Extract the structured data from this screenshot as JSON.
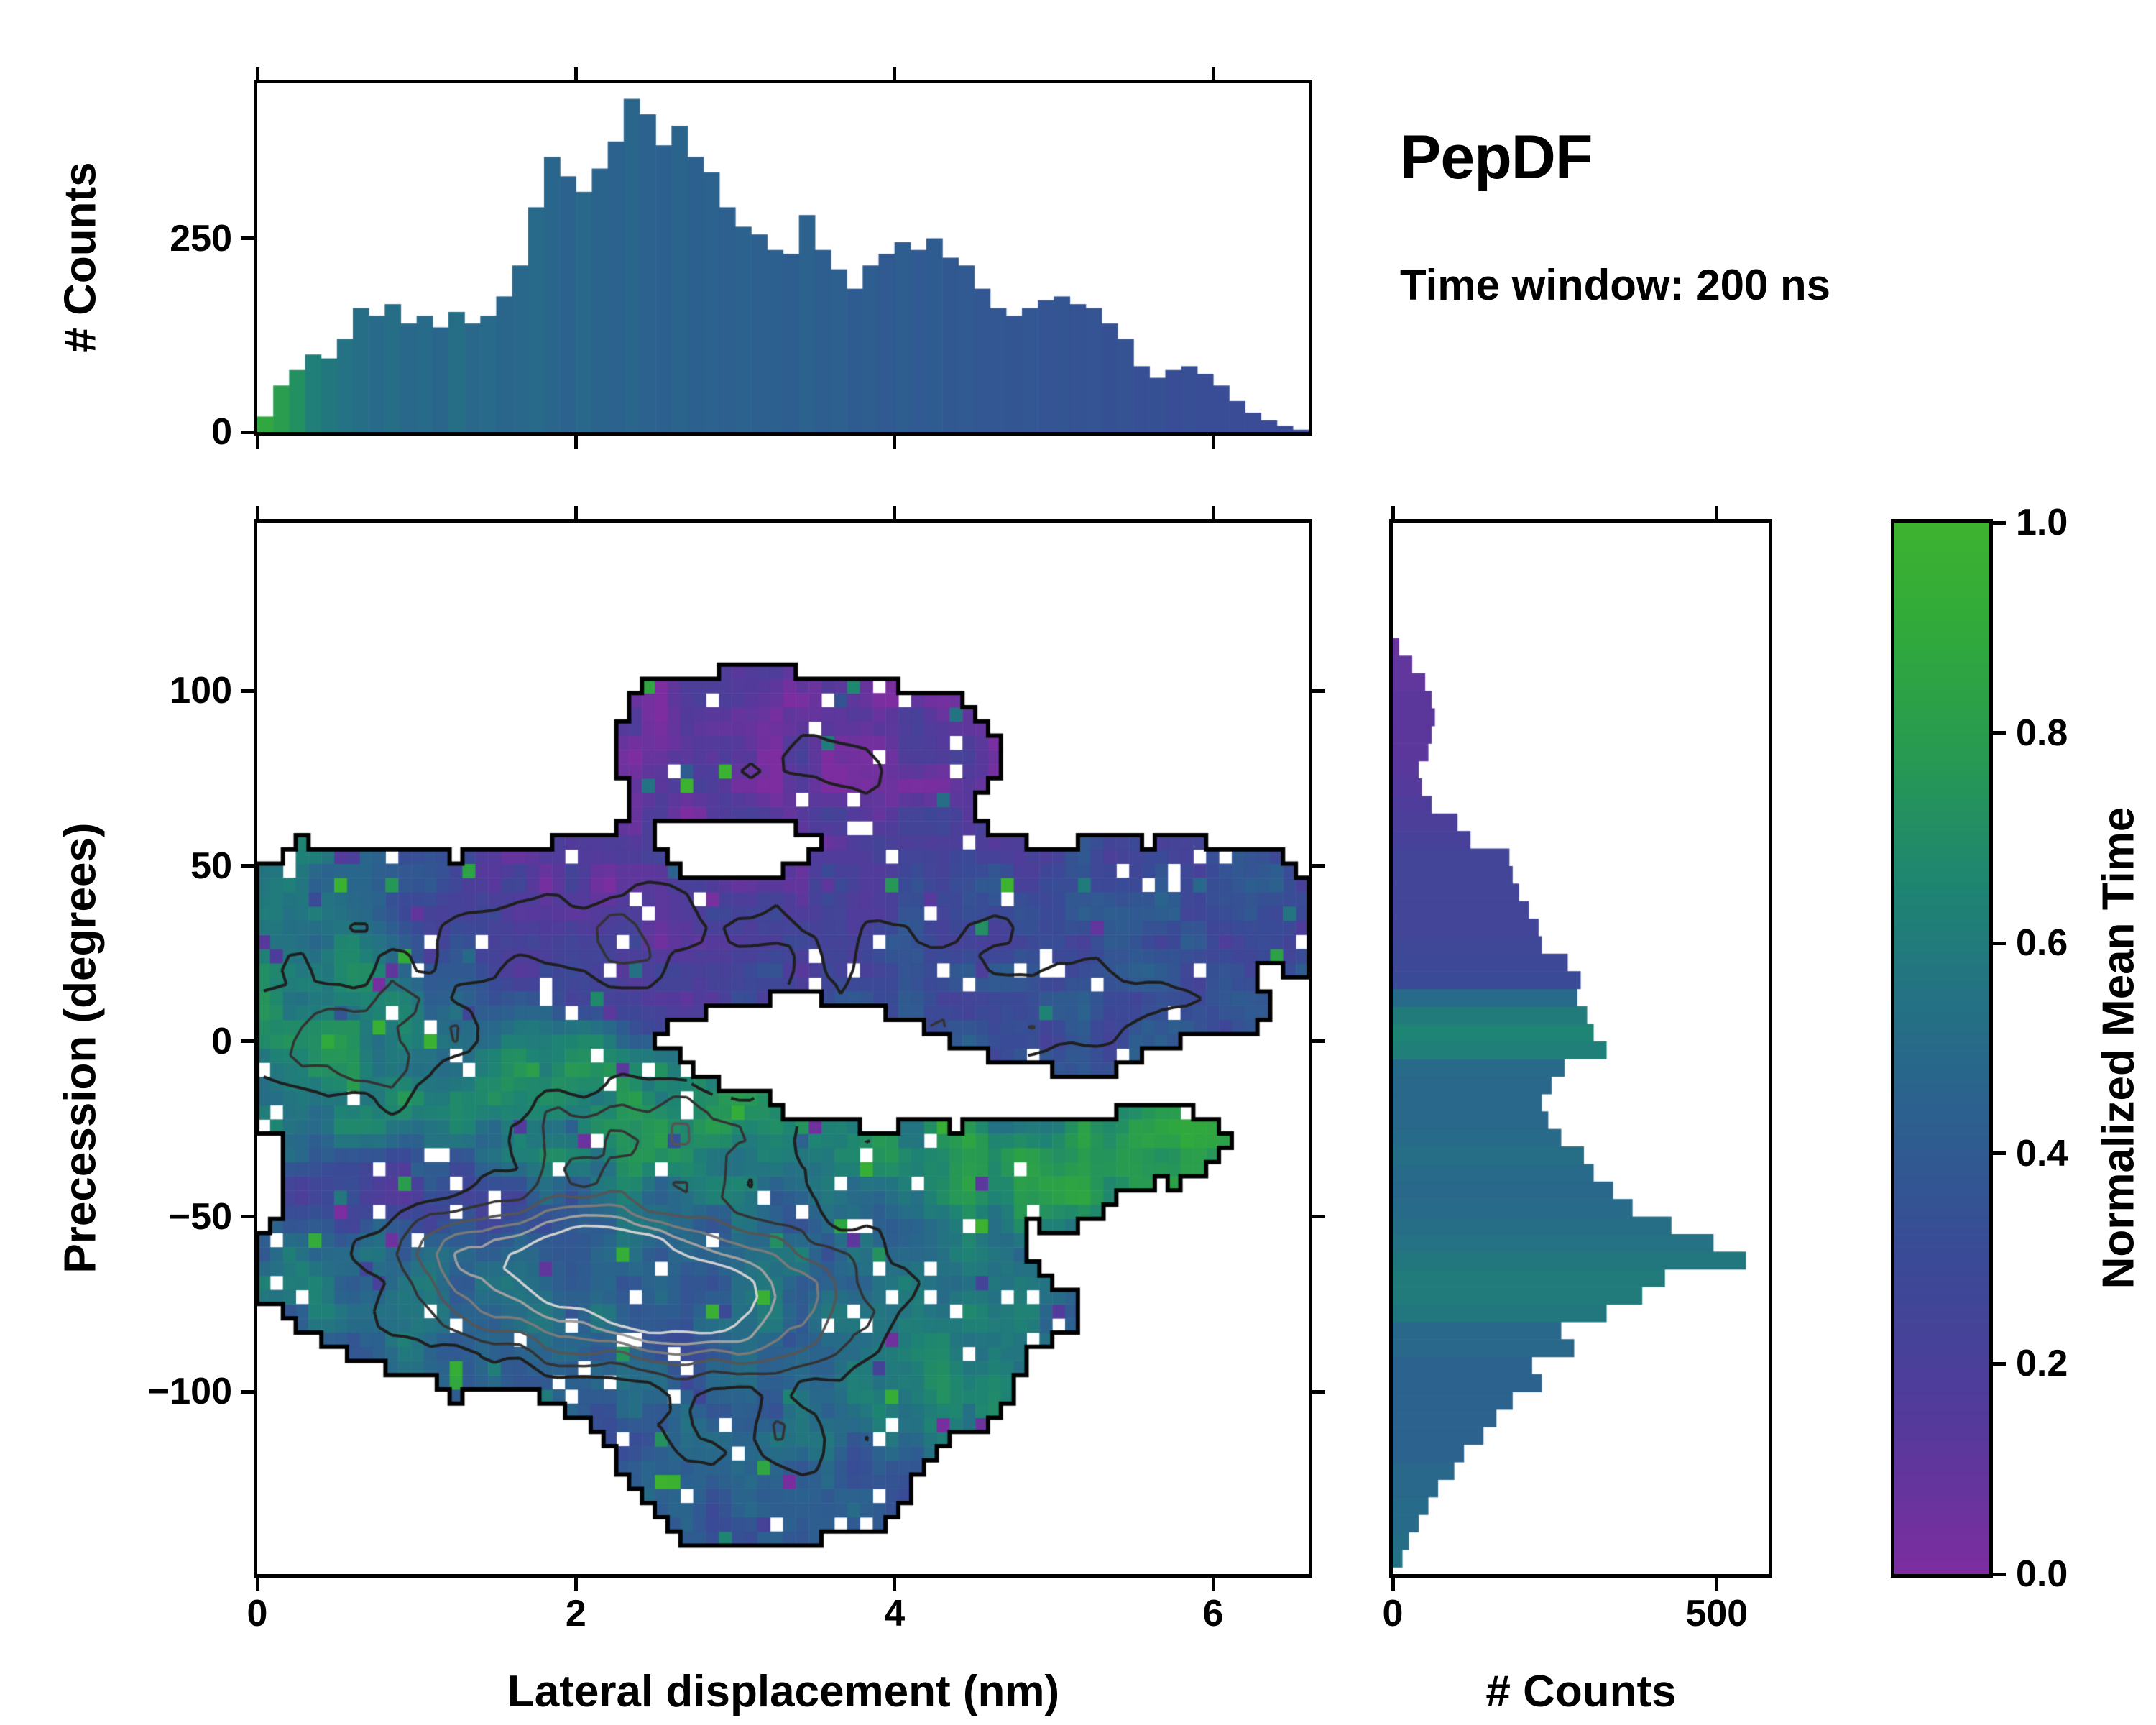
{
  "title": "PepDF",
  "subtitle": "Time window: 200 ns",
  "colorbar": {
    "label": "Normalized Mean Time",
    "tick_labels": [
      "0.0",
      "0.2",
      "0.4",
      "0.6",
      "0.8",
      "1.0"
    ],
    "tick_values": [
      0,
      0.2,
      0.4,
      0.6,
      0.8,
      1.0
    ],
    "stops": [
      [
        0,
        "#7d2da0"
      ],
      [
        0.15,
        "#533a9b"
      ],
      [
        0.3,
        "#3a4a96"
      ],
      [
        0.45,
        "#2b628e"
      ],
      [
        0.55,
        "#247283"
      ],
      [
        0.65,
        "#1e8473"
      ],
      [
        0.78,
        "#289a52"
      ],
      [
        0.9,
        "#31aa3b"
      ],
      [
        1,
        "#3db32f"
      ]
    ]
  },
  "axes": {
    "main": {
      "xlabel": "Lateral displacement (nm)",
      "ylabel": "Precession (degrees)",
      "xlim": [
        0,
        6.6
      ],
      "ylim": [
        -152,
        148
      ],
      "xticks": [
        0,
        2,
        4,
        6
      ],
      "xtick_labels": [
        "0",
        "2",
        "4",
        "6"
      ],
      "yticks": [
        -100,
        -50,
        0,
        50,
        100
      ],
      "ytick_labels": [
        "−100",
        "−50",
        "0",
        "50",
        "100"
      ]
    },
    "top": {
      "ylabel": "# Counts",
      "ylim": [
        0,
        450
      ],
      "yticks": [
        0,
        250
      ],
      "ytick_labels": [
        "0",
        "250"
      ]
    },
    "right": {
      "xlabel": "# Counts",
      "xlim": [
        0,
        580
      ],
      "xticks": [
        0,
        500
      ],
      "xtick_labels": [
        "0",
        "500"
      ]
    }
  },
  "chart_data": [
    {
      "type": "bar",
      "name": "lateral-displacement-histogram",
      "xlabel": "Lateral displacement (nm)",
      "ylabel": "# Counts",
      "x_start": 0,
      "bin_width": 0.1,
      "xlim": [
        0,
        6.6
      ],
      "ylim": [
        0,
        450
      ],
      "values": [
        20,
        60,
        80,
        100,
        95,
        120,
        160,
        150,
        165,
        140,
        150,
        135,
        155,
        140,
        150,
        175,
        215,
        290,
        355,
        330,
        310,
        340,
        375,
        430,
        410,
        370,
        395,
        355,
        335,
        290,
        265,
        255,
        235,
        230,
        280,
        235,
        210,
        185,
        215,
        230,
        245,
        235,
        250,
        225,
        215,
        185,
        160,
        150,
        160,
        170,
        175,
        165,
        160,
        140,
        120,
        85,
        70,
        80,
        85,
        75,
        60,
        40,
        25,
        15,
        8,
        3
      ],
      "color_values": [
        0.88,
        0.8,
        0.72,
        0.62,
        0.58,
        0.55,
        0.52,
        0.5,
        0.52,
        0.48,
        0.5,
        0.47,
        0.52,
        0.48,
        0.5,
        0.47,
        0.48,
        0.5,
        0.47,
        0.45,
        0.48,
        0.46,
        0.45,
        0.47,
        0.45,
        0.44,
        0.46,
        0.44,
        0.45,
        0.43,
        0.45,
        0.43,
        0.44,
        0.42,
        0.45,
        0.42,
        0.43,
        0.41,
        0.42,
        0.4,
        0.42,
        0.4,
        0.41,
        0.39,
        0.4,
        0.38,
        0.38,
        0.37,
        0.38,
        0.36,
        0.37,
        0.35,
        0.36,
        0.34,
        0.35,
        0.33,
        0.34,
        0.32,
        0.33,
        0.32,
        0.32,
        0.31,
        0.31,
        0.3,
        0.3,
        0.3
      ]
    },
    {
      "type": "heatmap",
      "name": "precession-vs-displacement-density-map",
      "xlabel": "Lateral displacement (nm)",
      "ylabel": "Precession (degrees)",
      "value_label": "Normalized Mean Time",
      "xlim": [
        0,
        6.6
      ],
      "ylim": [
        -152,
        148
      ],
      "nx": 82,
      "ny": 74,
      "seed": 11,
      "occupancy_threshold": 0.32,
      "noise_amp": 0.1,
      "dropout_fraction": 0.045,
      "speckle_fraction": 0.04,
      "regions": [
        {
          "cx": 3.4,
          "cy": 82,
          "sx": 0.78,
          "sy": 17,
          "w": 1.0,
          "v": 0.1
        },
        {
          "cx": 2.0,
          "cy": 32,
          "sx": 1.15,
          "sy": 15,
          "w": 1.0,
          "v": 0.13
        },
        {
          "cx": 0.45,
          "cy": 22,
          "sx": 0.5,
          "sy": 20,
          "w": 0.85,
          "v": 0.8
        },
        {
          "cx": 4.75,
          "cy": 22,
          "sx": 1.1,
          "sy": 20,
          "w": 1.0,
          "v": 0.33
        },
        {
          "cx": 5.7,
          "cy": 42,
          "sx": 0.55,
          "sy": 10,
          "w": 0.65,
          "v": 0.3
        },
        {
          "cx": 0.95,
          "cy": -6,
          "sx": 0.75,
          "sy": 14,
          "w": 1.0,
          "v": 0.6
        },
        {
          "cx": 2.4,
          "cy": -22,
          "sx": 0.95,
          "sy": 12,
          "w": 1.0,
          "v": 0.72
        },
        {
          "cx": 1.05,
          "cy": -42,
          "sx": 0.5,
          "sy": 10,
          "w": 0.8,
          "v": 0.12
        },
        {
          "cx": 2.75,
          "cy": -72,
          "sx": 1.25,
          "sy": 19,
          "w": 1.25,
          "v": 0.44
        },
        {
          "cx": 1.45,
          "cy": -75,
          "sx": 0.5,
          "sy": 11,
          "w": 0.7,
          "v": 0.6
        },
        {
          "cx": 4.1,
          "cy": -78,
          "sx": 0.5,
          "sy": 13,
          "w": 0.7,
          "v": 0.7
        },
        {
          "cx": 4.8,
          "cy": -38,
          "sx": 0.45,
          "sy": 9,
          "w": 0.7,
          "v": 0.82
        },
        {
          "cx": 5.65,
          "cy": -30,
          "sx": 0.33,
          "sy": 7,
          "w": 0.65,
          "v": 0.85
        },
        {
          "cx": 3.2,
          "cy": -118,
          "sx": 0.68,
          "sy": 18,
          "w": 0.9,
          "v": 0.42
        },
        {
          "cx": 3.95,
          "cy": -103,
          "sx": 0.4,
          "sy": 7,
          "w": 0.55,
          "v": 0.78
        },
        {
          "cx": 0.35,
          "cy": -65,
          "sx": 0.35,
          "sy": 10,
          "w": 0.55,
          "v": 0.55
        }
      ],
      "holes": [
        {
          "cx": 3.5,
          "cy": -4,
          "sx": 0.45,
          "sy": 10,
          "w": 1.3
        },
        {
          "cx": 3.05,
          "cy": 55,
          "sx": 0.3,
          "sy": 6,
          "w": 0.9
        }
      ],
      "density_blobs": [
        {
          "cx": 2.4,
          "cy": -68,
          "sx": 0.95,
          "sy": 16,
          "a": 1.0
        },
        {
          "cx": 1.8,
          "cy": -60,
          "sx": 0.55,
          "sy": 9,
          "a": 0.45
        },
        {
          "cx": 2.9,
          "cy": -80,
          "sx": 0.5,
          "sy": 9,
          "a": 0.4
        },
        {
          "cx": 0.6,
          "cy": 0,
          "sx": 0.55,
          "sy": 13,
          "a": 0.5
        },
        {
          "cx": 2.0,
          "cy": 30,
          "sx": 0.95,
          "sy": 13,
          "a": 0.32
        },
        {
          "cx": 4.6,
          "cy": 12,
          "sx": 0.95,
          "sy": 16,
          "a": 0.33
        },
        {
          "cx": 3.5,
          "cy": 80,
          "sx": 0.6,
          "sy": 11,
          "a": 0.28
        },
        {
          "cx": 2.6,
          "cy": -25,
          "sx": 0.85,
          "sy": 10,
          "a": 0.4
        },
        {
          "cx": 3.2,
          "cy": -115,
          "sx": 0.5,
          "sy": 9,
          "a": 0.28
        }
      ],
      "contour_levels": [
        {
          "level": 0.22,
          "color": "#1f1f1f",
          "lw": 4
        },
        {
          "level": 0.35,
          "color": "#333333",
          "lw": 3.5
        },
        {
          "level": 0.5,
          "color": "#555555",
          "lw": 3.5
        },
        {
          "level": 0.65,
          "color": "#7a7a7a",
          "lw": 3.5
        },
        {
          "level": 0.8,
          "color": "#9f9f9f",
          "lw": 3.5
        },
        {
          "level": 0.95,
          "color": "#d0d0d0",
          "lw": 3.5
        }
      ]
    },
    {
      "type": "bar",
      "name": "precession-histogram",
      "orientation": "horizontal",
      "xlabel": "# Counts",
      "ylabel": "Precession (degrees)",
      "y_start": -150,
      "bin_width": 5,
      "xlim": [
        0,
        580
      ],
      "ylim": [
        -152,
        148
      ],
      "values": [
        15,
        25,
        40,
        55,
        70,
        95,
        110,
        140,
        160,
        185,
        230,
        215,
        280,
        260,
        330,
        385,
        420,
        545,
        495,
        430,
        370,
        340,
        310,
        295,
        260,
        240,
        230,
        245,
        265,
        330,
        310,
        300,
        285,
        290,
        270,
        230,
        225,
        210,
        195,
        185,
        180,
        120,
        100,
        60,
        45,
        40,
        55,
        60,
        65,
        60,
        50,
        30,
        10,
        0,
        0,
        0,
        0,
        0,
        0,
        0
      ],
      "color_values": [
        0.55,
        0.52,
        0.5,
        0.5,
        0.48,
        0.48,
        0.45,
        0.45,
        0.45,
        0.45,
        0.45,
        0.45,
        0.48,
        0.48,
        0.58,
        0.6,
        0.6,
        0.58,
        0.55,
        0.52,
        0.5,
        0.48,
        0.5,
        0.52,
        0.5,
        0.48,
        0.48,
        0.48,
        0.5,
        0.62,
        0.65,
        0.6,
        0.5,
        0.3,
        0.28,
        0.27,
        0.25,
        0.25,
        0.25,
        0.25,
        0.25,
        0.22,
        0.2,
        0.18,
        0.15,
        0.13,
        0.12,
        0.12,
        0.12,
        0.12,
        0.1,
        0.1,
        0.08,
        0,
        0,
        0,
        0,
        0,
        0,
        0
      ]
    }
  ]
}
